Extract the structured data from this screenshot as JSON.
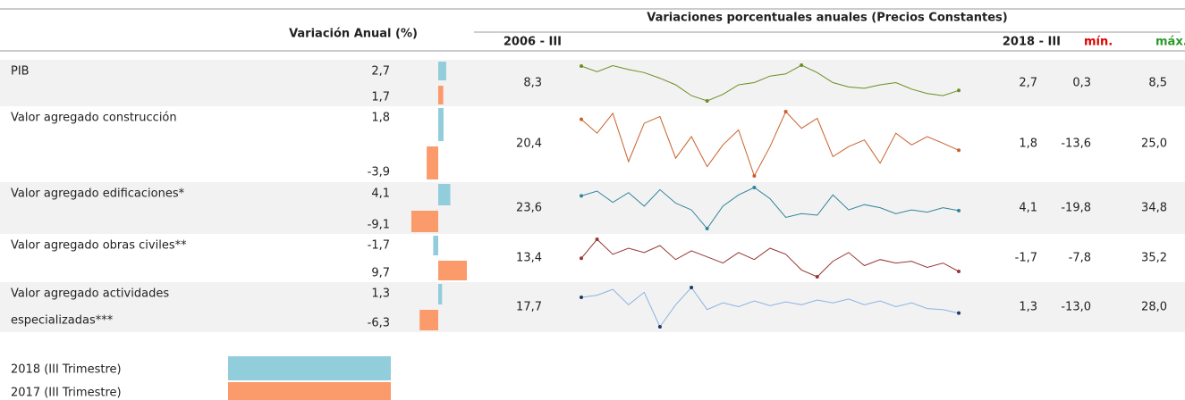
{
  "header": {
    "left_title": "Variación Anual (%)",
    "right_title": "Variaciones porcentuales anuales  (Precios Constantes)",
    "start_label": "2006 - III",
    "end_label": "2018 - III",
    "min_label": "mín.",
    "max_label": "máx."
  },
  "rows": [
    {
      "name": "PIB",
      "color": "#6b8e23",
      "current": {
        "value": 2.7,
        "label": "2,7"
      },
      "previous": {
        "value": 1.7,
        "label": "1,7"
      },
      "start": {
        "value": 8.3,
        "label": "8,3"
      },
      "end": {
        "value": 2.7,
        "label": "2,7"
      },
      "min": {
        "value": 0.3,
        "label": "0,3"
      },
      "max": {
        "value": 8.5,
        "label": "8,5"
      },
      "series": [
        8.3,
        7.0,
        8.4,
        7.5,
        6.8,
        5.5,
        4.0,
        1.5,
        0.3,
        1.8,
        4.0,
        4.5,
        6.0,
        6.5,
        8.5,
        6.8,
        4.5,
        3.5,
        3.2,
        4.0,
        4.5,
        3.0,
        2.0,
        1.5,
        2.7
      ]
    },
    {
      "name": "Valor agregado construcción",
      "color": "#c8602a",
      "current": {
        "value": 1.8,
        "label": "1,8"
      },
      "previous": {
        "value": -3.9,
        "label": "-3,9"
      },
      "start": {
        "value": 20.4,
        "label": "20,4"
      },
      "end": {
        "value": 1.8,
        "label": "1,8"
      },
      "min": {
        "value": -13.6,
        "label": "-13,6"
      },
      "max": {
        "value": 25,
        "label": "25,0"
      },
      "series": [
        20.4,
        12,
        24,
        -5,
        18,
        22,
        -3,
        10,
        -8,
        5,
        14,
        -13.6,
        4,
        25,
        15,
        21,
        -2,
        4,
        8,
        -6,
        12,
        5,
        10,
        6,
        1.8
      ]
    },
    {
      "name": "Valor agregado edificaciones*",
      "color": "#31859c",
      "current": {
        "value": 4.1,
        "label": "4,1"
      },
      "previous": {
        "value": -9.1,
        "label": "-9,1"
      },
      "start": {
        "value": 23.6,
        "label": "23,6"
      },
      "end": {
        "value": 4.1,
        "label": "4,1"
      },
      "min": {
        "value": -19.8,
        "label": "-19,8"
      },
      "max": {
        "value": 34.8,
        "label": "34,8"
      },
      "series": [
        23.6,
        30,
        15,
        28,
        10,
        32,
        14,
        5,
        -19.8,
        10,
        25,
        34.8,
        20,
        -5,
        0,
        -2,
        25,
        5,
        12,
        8,
        0,
        5,
        2,
        8,
        4.1
      ]
    },
    {
      "name": "Valor agregado obras civiles**",
      "color": "#953735",
      "current": {
        "value": -1.7,
        "label": "-1,7"
      },
      "previous": {
        "value": 9.7,
        "label": "9,7"
      },
      "start": {
        "value": 13.4,
        "label": "13,4"
      },
      "end": {
        "value": -1.7,
        "label": "-1,7"
      },
      "min": {
        "value": -7.8,
        "label": "-7,8"
      },
      "max": {
        "value": 35.2,
        "label": "35,2"
      },
      "series": [
        13.4,
        35.2,
        18,
        25,
        20,
        28,
        12,
        22,
        15,
        8,
        20,
        12,
        25,
        18,
        0,
        -7.8,
        10,
        20,
        5,
        12,
        8,
        10,
        3,
        8,
        -1.7
      ]
    },
    {
      "name": "Valor agregado actividades especializadas***",
      "color": "#8db3e2",
      "current": {
        "value": 1.3,
        "label": "1,3"
      },
      "previous": {
        "value": -6.3,
        "label": "-6,3"
      },
      "start": {
        "value": 17.7,
        "label": "17,7"
      },
      "end": {
        "value": 1.3,
        "label": "1,3"
      },
      "min": {
        "value": -13,
        "label": "-13,0"
      },
      "max": {
        "value": 28,
        "label": "28,0"
      },
      "series": [
        17.7,
        20,
        26,
        10,
        23,
        -13,
        10,
        28,
        5,
        12,
        8,
        14,
        9,
        13,
        10,
        15,
        12,
        16,
        10,
        14,
        8,
        12,
        6,
        5,
        1.3
      ]
    }
  ],
  "legend": {
    "current": {
      "label": "2018 (III Trimestre)",
      "color": "#92cddc"
    },
    "previous": {
      "label": "2017 (III Trimestre)",
      "color": "#fb9a6a"
    }
  }
}
